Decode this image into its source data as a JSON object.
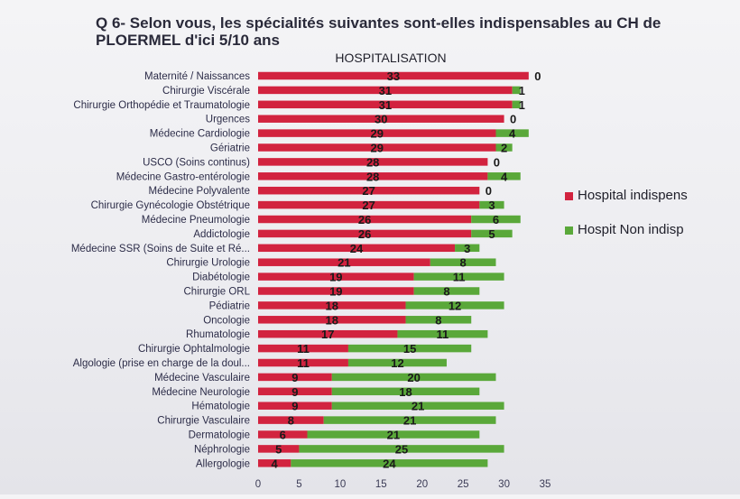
{
  "title": "Q 6- Selon vous, les spécialités suivantes sont-elles indispensables au CH de PLOERMEL d'ici 5/10 ans",
  "chart_data": {
    "type": "bar",
    "orientation": "horizontal",
    "stacked": true,
    "title": "HOSPITALISATION",
    "xlabel": "",
    "ylabel": "",
    "xlim": [
      0,
      35
    ],
    "xticks": [
      0,
      5,
      10,
      15,
      20,
      25,
      30,
      35
    ],
    "grid": false,
    "legend_position": "right",
    "categories": [
      "Maternité / Naissances",
      "Chirurgie Viscérale",
      "Chirurgie Orthopédie et Traumatologie",
      "Urgences",
      "Médecine Cardiologie",
      "Gériatrie",
      "USCO (Soins continus)",
      "Médecine Gastro-entérologie",
      "Médecine Polyvalente",
      "Chirurgie Gynécologie Obstétrique",
      "Médecine Pneumologie",
      "Addictologie",
      "Médecine SSR (Soins de Suite et Ré...",
      "Chirurgie Urologie",
      "Diabétologie",
      "Chirurgie ORL",
      "Pédiatrie",
      "Oncologie",
      "Rhumatologie",
      "Chirurgie Ophtalmologie",
      "Algologie (prise en charge de la doul...",
      "Médecine Vasculaire",
      "Médecine Neurologie",
      "Hématologie",
      "Chirurgie Vasculaire",
      "Dermatologie",
      "Néphrologie",
      "Allergologie"
    ],
    "series": [
      {
        "name": "Hospital indispens",
        "color": "#d2233f",
        "values": [
          33,
          31,
          31,
          30,
          29,
          29,
          28,
          28,
          27,
          27,
          26,
          26,
          24,
          21,
          19,
          19,
          18,
          18,
          17,
          11,
          11,
          9,
          9,
          9,
          8,
          6,
          5,
          4
        ]
      },
      {
        "name": "Hospit Non indisp",
        "color": "#5aa83a",
        "values": [
          0,
          1,
          1,
          0,
          4,
          2,
          0,
          4,
          0,
          3,
          6,
          5,
          3,
          8,
          11,
          8,
          12,
          8,
          11,
          15,
          12,
          20,
          18,
          21,
          21,
          21,
          25,
          24
        ]
      }
    ]
  }
}
